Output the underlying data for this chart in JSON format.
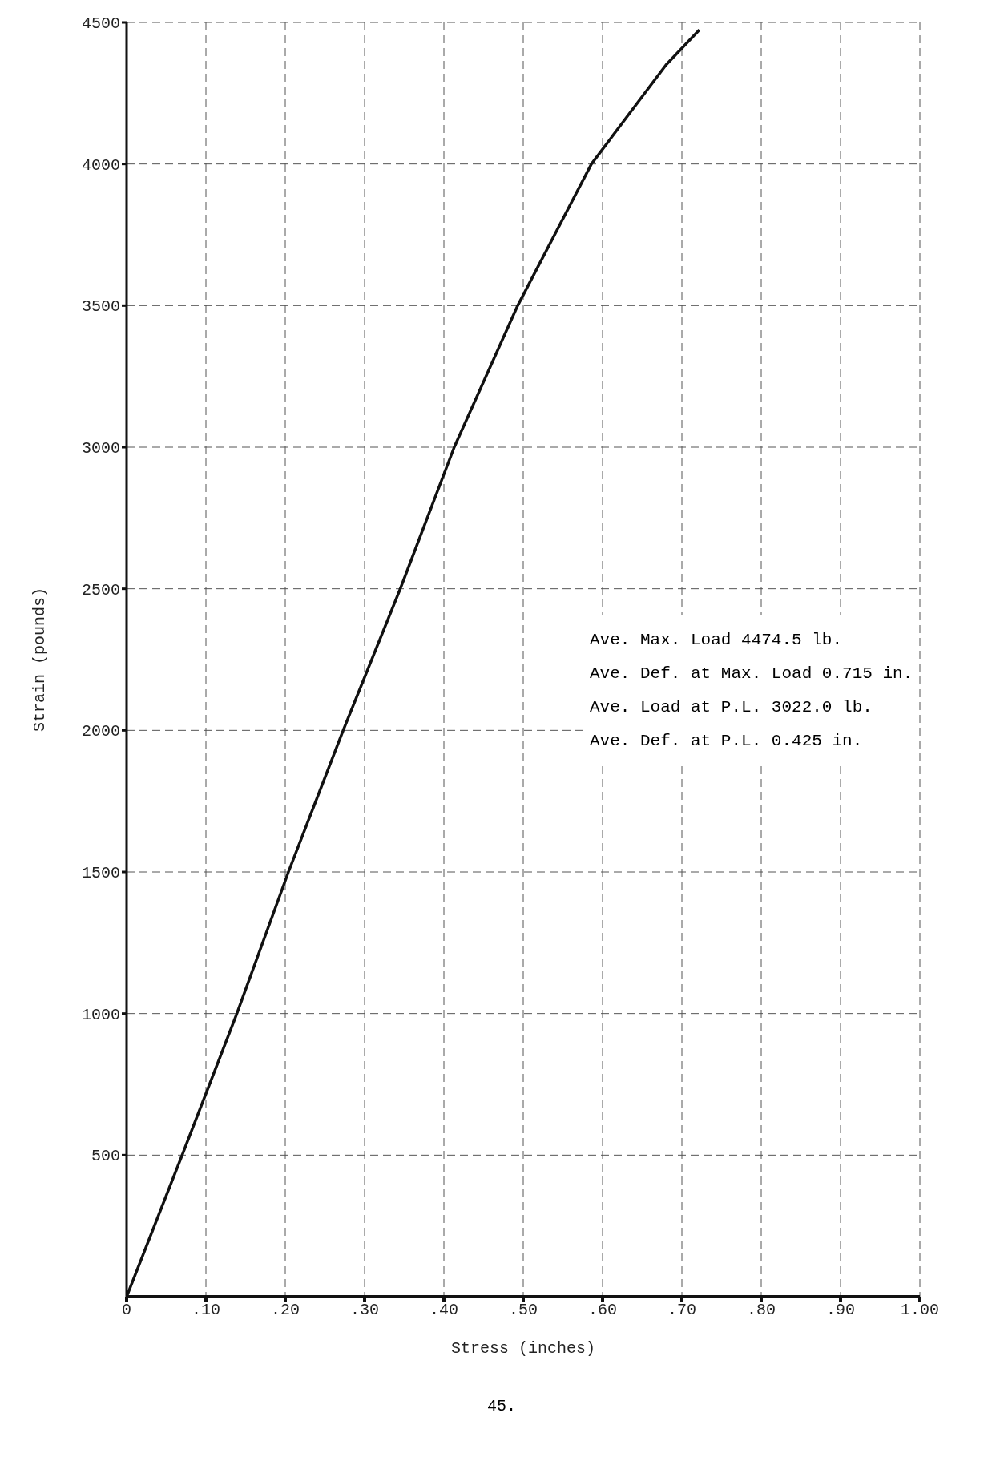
{
  "chart_data": {
    "type": "line",
    "xlabel": "Stress (inches)",
    "ylabel": "Strain (pounds)",
    "x": [
      0,
      0.07,
      0.139,
      0.204,
      0.273,
      0.345,
      0.413,
      0.493,
      0.586,
      0.68,
      0.722
    ],
    "series": [
      {
        "color": "#111111",
        "values": [
          0,
          500,
          1000,
          1500,
          2000,
          2500,
          3000,
          3500,
          4000,
          4350,
          4474
        ]
      }
    ],
    "xlim": [
      0,
      1
    ],
    "xticks": [
      {
        "value": 0,
        "label": "0"
      },
      {
        "value": 0.1,
        "label": ".10"
      },
      {
        "value": 0.2,
        "label": ".20"
      },
      {
        "value": 0.3,
        "label": ".30"
      },
      {
        "value": 0.4,
        "label": ".40"
      },
      {
        "value": 0.5,
        "label": ".50"
      },
      {
        "value": 0.6,
        "label": ".60"
      },
      {
        "value": 0.7,
        "label": ".70"
      },
      {
        "value": 0.8,
        "label": ".80"
      },
      {
        "value": 0.9,
        "label": ".90"
      },
      {
        "value": 1,
        "label": "1.00"
      }
    ],
    "ylim": [
      0,
      4500
    ],
    "yticks": [
      500,
      1000,
      1500,
      2000,
      2500,
      3000,
      3500,
      4000,
      4500
    ],
    "grid": true,
    "line_style": "solid",
    "marker": "none",
    "annotations": [
      "Ave. Max. Load 4474.5 lb.",
      "Ave. Def. at Max. Load 0.715 in.",
      "Ave. Load at P.L. 3022.0 lb.",
      "Ave. Def. at P.L. 0.425 in.",
      "45."
    ]
  }
}
